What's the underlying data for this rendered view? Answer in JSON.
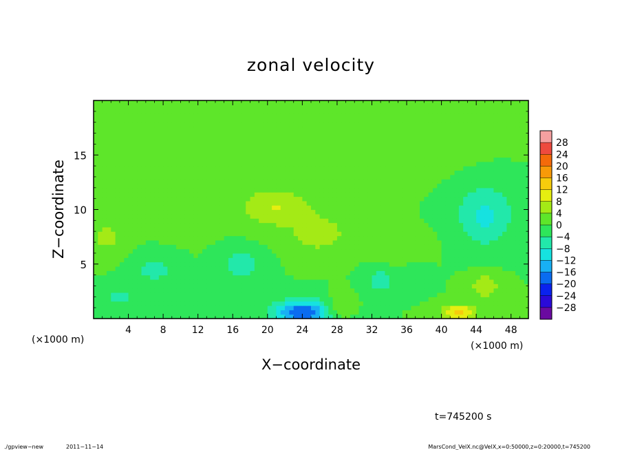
{
  "chart_data": {
    "type": "heatmap",
    "title": "zonal velocity",
    "xlabel": "X−coordinate",
    "ylabel": "Z−coordinate",
    "x_unit_left": "(×1000 m)",
    "x_unit_right": "(×1000 m)",
    "xlim": [
      0,
      50
    ],
    "ylim": [
      0,
      20
    ],
    "x_ticks": [
      4,
      8,
      12,
      16,
      20,
      24,
      28,
      32,
      36,
      40,
      44,
      48
    ],
    "x_tick_labels": [
      "4",
      "8",
      "12",
      "16",
      "20",
      "24",
      "28",
      "32",
      "36",
      "40",
      "44",
      "48"
    ],
    "y_ticks": [
      5,
      10,
      15
    ],
    "y_tick_labels": [
      "5",
      "10",
      "15"
    ],
    "colorbar": {
      "levels": [
        -32,
        -28,
        -24,
        -20,
        -16,
        -12,
        -8,
        -4,
        0,
        4,
        8,
        12,
        16,
        20,
        24,
        28,
        32
      ],
      "labels": [
        "28",
        "24",
        "20",
        "16",
        "12",
        "8",
        "4",
        "0",
        "−4",
        "−8",
        "−12",
        "−16",
        "−20",
        "−24",
        "−28"
      ],
      "label_values": [
        28,
        24,
        20,
        16,
        12,
        8,
        4,
        0,
        -4,
        -8,
        -12,
        -16,
        -20,
        -24,
        -28
      ],
      "colors": [
        "#6a0aa0",
        "#2a0ad8",
        "#0a22ee",
        "#0a6cf0",
        "#18b0f4",
        "#16e2e0",
        "#22e8aa",
        "#2ee65a",
        "#5ee62a",
        "#a4ea16",
        "#e6ee10",
        "#f6cc0c",
        "#f89a08",
        "#f46a0a",
        "#ee4a3e",
        "#f6a0a0"
      ]
    },
    "features": [
      {
        "x": 24,
        "z": 0.6,
        "sx": 3.2,
        "sz": 1.1,
        "u": -20
      },
      {
        "x": 42,
        "z": 0.6,
        "sx": 2.0,
        "sz": 0.7,
        "u": 13
      },
      {
        "x": 21,
        "z": 10.2,
        "sx": 4.2,
        "sz": 1.8,
        "u": 8
      },
      {
        "x": 26,
        "z": 7.8,
        "sx": 3.0,
        "sz": 1.6,
        "u": 7
      },
      {
        "x": 45,
        "z": 9.5,
        "sx": 3.2,
        "sz": 2.8,
        "u": -9
      },
      {
        "x": 17,
        "z": 5.0,
        "sx": 2.0,
        "sz": 1.4,
        "u": -8
      },
      {
        "x": 7,
        "z": 4.5,
        "sx": 2.2,
        "sz": 1.2,
        "u": -6
      },
      {
        "x": 3,
        "z": 2.0,
        "sx": 1.8,
        "sz": 1.0,
        "u": -5
      },
      {
        "x": 13,
        "z": 2.0,
        "sx": 1.8,
        "sz": 1.0,
        "u": -4
      },
      {
        "x": 33,
        "z": 3.5,
        "sx": 1.4,
        "sz": 1.0,
        "u": -8
      },
      {
        "x": 37,
        "z": 4.0,
        "sx": 1.5,
        "sz": 1.2,
        "u": -4
      },
      {
        "x": 1.5,
        "z": 7.5,
        "sx": 1.8,
        "sz": 1.4,
        "u": 6
      },
      {
        "x": 45,
        "z": 3.0,
        "sx": 1.8,
        "sz": 1.2,
        "u": 7
      },
      {
        "x": 36,
        "z": 6.5,
        "sx": 2.5,
        "sz": 1.5,
        "u": 3
      },
      {
        "x": 10,
        "z": 14,
        "sx": 6,
        "sz": 4,
        "u": 2
      },
      {
        "x": 40,
        "z": 16,
        "sx": 6,
        "sz": 3,
        "u": 1
      },
      {
        "x": 28,
        "z": 1.0,
        "sx": 1.5,
        "sz": 1.0,
        "u": 5
      }
    ]
  },
  "footer": {
    "time_label": "t=745200 s",
    "program": "./gpview−new",
    "date": "2011−11−14",
    "source": "MarsCond_VelX.nc@VelX,x=0:50000,z=0:20000,t=745200"
  }
}
